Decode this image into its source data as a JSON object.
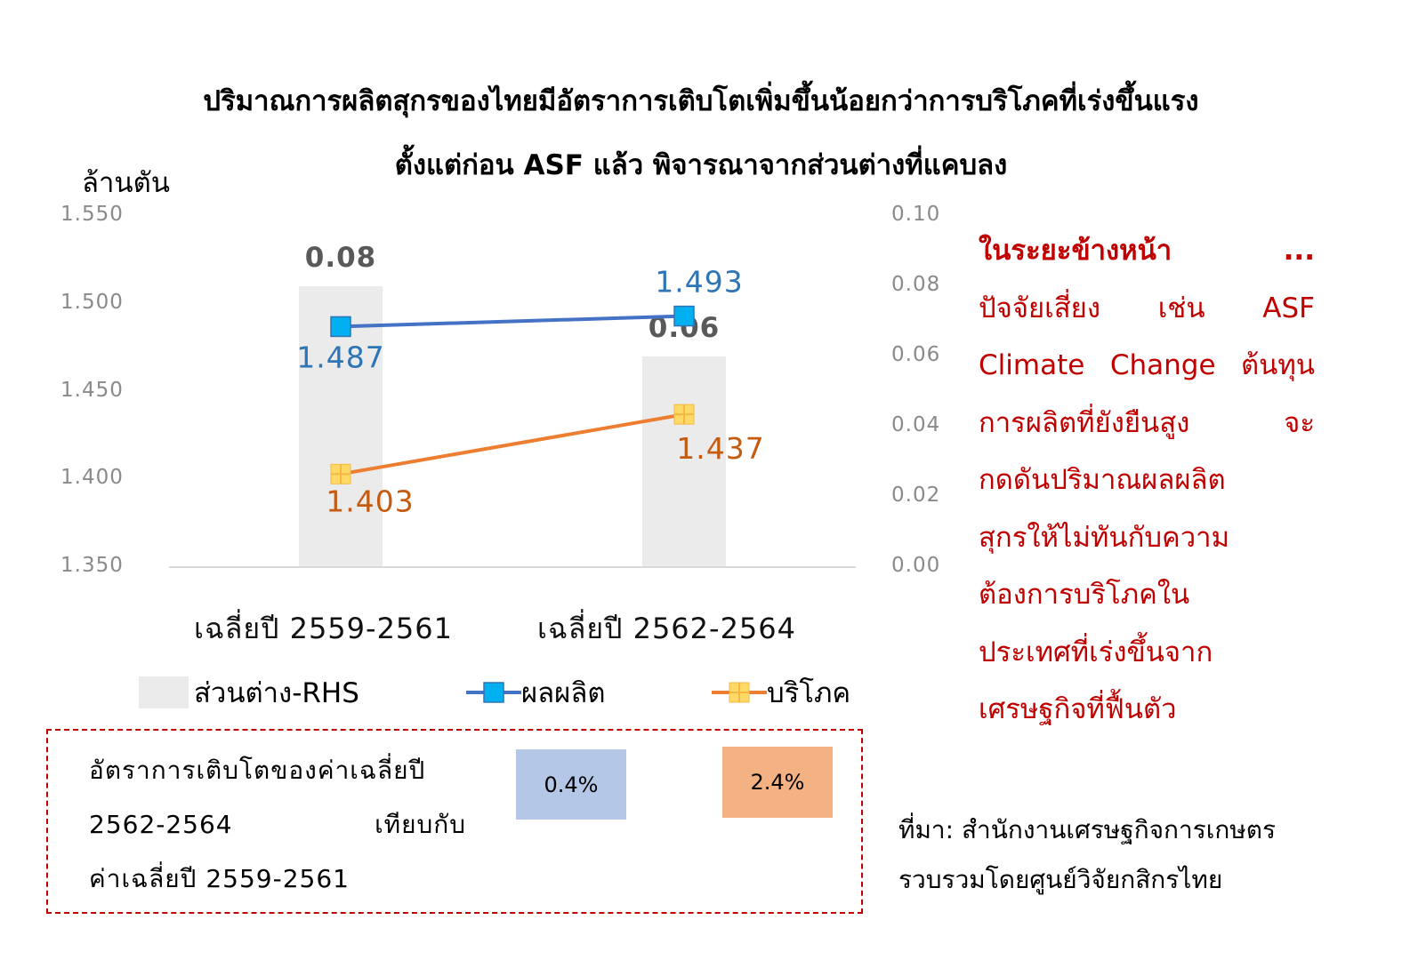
{
  "title": {
    "line1": "ปริมาณการผลิตสุกรของไทยมีอัตราการเติบโตเพิ่มขึ้นน้อยกว่าการบริโภคที่เร่งขึ้นแรง",
    "line2": "ตั้งแต่ก่อน ASF แล้ว พิจารณาจากส่วนต่างที่แคบลง"
  },
  "chart_data": {
    "type": "bar+line",
    "categories": [
      "เฉลี่ยปี 2559-2561",
      "เฉลี่ยปี 2562-2564"
    ],
    "ylabel": "ล้านตัน",
    "ylim": [
      1.35,
      1.55
    ],
    "yticks": [
      "1.550",
      "1.500",
      "1.450",
      "1.400",
      "1.350"
    ],
    "y2lim": [
      0,
      0.1
    ],
    "y2ticks": [
      "0.10",
      "0.08",
      "0.06",
      "0.04",
      "0.02",
      "0.00"
    ],
    "legend_position": "bottom",
    "series": [
      {
        "name": "ส่วนต่าง-RHS",
        "kind": "bar",
        "axis": "right",
        "color": "#ebebeb",
        "values": [
          0.08,
          0.06
        ],
        "labels": [
          "0.08",
          "0.06"
        ],
        "label_color": "#595959"
      },
      {
        "name": "ผลผลิต",
        "kind": "line",
        "axis": "left",
        "color": "#4472c4",
        "marker": "square",
        "marker_color": "#00b0f0",
        "values": [
          1.487,
          1.493
        ],
        "labels": [
          "1.487",
          "1.493"
        ],
        "label_color": "#2e75b6"
      },
      {
        "name": "บริโภค",
        "kind": "line",
        "axis": "left",
        "color": "#ed7d31",
        "marker": "plus-square",
        "marker_color": "#ffd966",
        "values": [
          1.403,
          1.437
        ],
        "labels": [
          "1.403",
          "1.437"
        ],
        "label_color": "#c55a11"
      }
    ]
  },
  "note": {
    "lines": [
      "ในระยะข้างหน้า ...",
      "ปัจจัยเสี่ยง เช่น ASF",
      "Climate Change ต้นทุน",
      "การผลิตที่ยังยืนสูง จะ",
      "กดดันปริมาณผลผลิต",
      "สุกรให้ไม่ทันกับความ",
      "ต้องการบริโภคใน",
      "ประเทศที่เร่งขึ้นจาก",
      "เศรษฐกิจที่ฟื้นตัว"
    ],
    "color": "#c00000"
  },
  "growth": {
    "label_lines": [
      "อัตราการเติบโตของค่าเฉลี่ยปี",
      "2562-2564 เทียบกับ",
      "ค่าเฉลี่ยปี 2559-2561"
    ],
    "production": "0.4%",
    "consumption": "2.4%"
  },
  "source": {
    "line1": "ที่มา: สำนักงานเศรษฐกิจการเกษตร",
    "line2": "รวบรวมโดยศูนย์วิจัยกสิกรไทย"
  }
}
